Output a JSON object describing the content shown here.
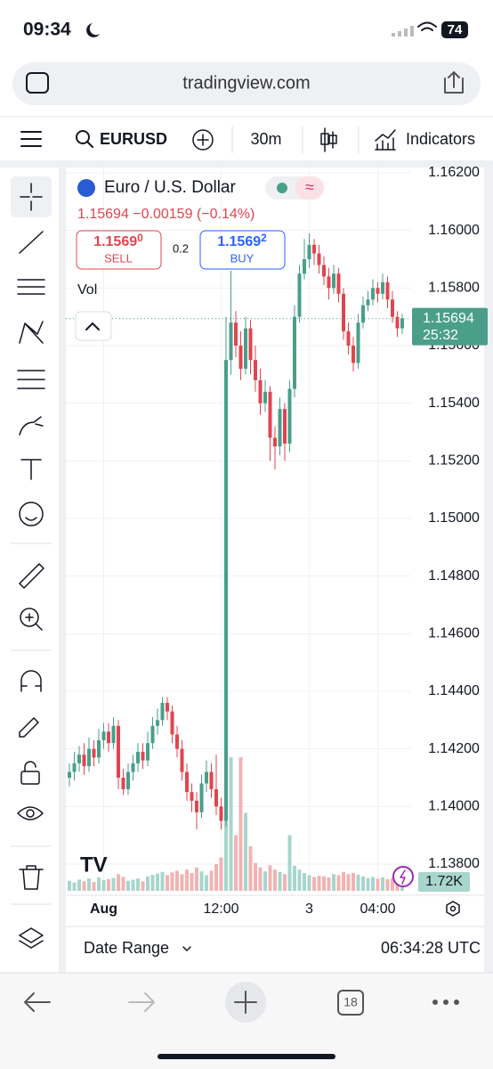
{
  "status": {
    "time": "09:34",
    "battery": "74"
  },
  "browser": {
    "url": "tradingview.com",
    "tabs": "18"
  },
  "toolbar": {
    "symbol": "EURUSD",
    "interval": "30m",
    "indicators": "Indicators"
  },
  "legend": {
    "name": "Euro / U.S. Dollar",
    "change": "−0.00159",
    "change_pct": "(−0.14%)",
    "sell_price": "1.1569",
    "sell_pip": "0",
    "sell": "SELL",
    "spread": "0.2",
    "buy_price": "1.1569",
    "buy_pip": "2",
    "buy": "BUY",
    "vol": "Vol"
  },
  "footer": {
    "date_range": "Date Range",
    "clock": "06:34:28 UTC"
  },
  "chart_data": {
    "type": "candlestick",
    "up_color": "#4a9e8a",
    "down_color": "#e0454f",
    "ylim": [
      1.138,
      1.162
    ],
    "yticks": [
      {
        "value": 1.162,
        "label": "1.16200"
      },
      {
        "value": 1.16,
        "label": "1.16000"
      },
      {
        "value": 1.158,
        "label": "1.15800"
      },
      {
        "value": 1.156,
        "label": "1.15600"
      },
      {
        "value": 1.154,
        "label": "1.15400"
      },
      {
        "value": 1.152,
        "label": "1.15200"
      },
      {
        "value": 1.15,
        "label": "1.15000"
      },
      {
        "value": 1.148,
        "label": "1.14800"
      },
      {
        "value": 1.146,
        "label": "1.14600"
      },
      {
        "value": 1.144,
        "label": "1.14400"
      },
      {
        "value": 1.142,
        "label": "1.14200"
      },
      {
        "value": 1.14,
        "label": "1.14000"
      },
      {
        "value": 1.138,
        "label": "1.13800"
      }
    ],
    "xticks": [
      {
        "value": 7,
        "label": "Aug"
      },
      {
        "value": 31,
        "label": "12:00"
      },
      {
        "value": 49,
        "label": "3"
      },
      {
        "value": 63,
        "label": "04:00"
      }
    ],
    "grid": true,
    "countdown": "25:32",
    "volume_last_label": "1.72K",
    "candles": [
      [
        1.141,
        1.1415,
        1.1407,
        1.1412
      ],
      [
        1.1412,
        1.1419,
        1.1409,
        1.1415
      ],
      [
        1.1415,
        1.1421,
        1.1412,
        1.1418
      ],
      [
        1.1418,
        1.1422,
        1.1411,
        1.1414
      ],
      [
        1.1414,
        1.1424,
        1.1412,
        1.142
      ],
      [
        1.142,
        1.1423,
        1.1414,
        1.1417
      ],
      [
        1.1417,
        1.1427,
        1.1415,
        1.1423
      ],
      [
        1.1423,
        1.1429,
        1.142,
        1.1426
      ],
      [
        1.1426,
        1.1429,
        1.1419,
        1.1422
      ],
      [
        1.1422,
        1.1431,
        1.142,
        1.1428
      ],
      [
        1.1428,
        1.143,
        1.1406,
        1.141
      ],
      [
        1.141,
        1.1413,
        1.1404,
        1.1406
      ],
      [
        1.1406,
        1.1415,
        1.1404,
        1.1412
      ],
      [
        1.1412,
        1.1418,
        1.1409,
        1.1415
      ],
      [
        1.1415,
        1.1422,
        1.1412,
        1.1419
      ],
      [
        1.1419,
        1.1422,
        1.1413,
        1.1416
      ],
      [
        1.1416,
        1.1426,
        1.1414,
        1.1422
      ],
      [
        1.1422,
        1.1431,
        1.142,
        1.1428
      ],
      [
        1.1428,
        1.1434,
        1.1425,
        1.143
      ],
      [
        1.143,
        1.1438,
        1.1428,
        1.1436
      ],
      [
        1.1436,
        1.1438,
        1.143,
        1.1433
      ],
      [
        1.1433,
        1.1435,
        1.1422,
        1.1425
      ],
      [
        1.1425,
        1.1428,
        1.1417,
        1.142
      ],
      [
        1.142,
        1.1423,
        1.1409,
        1.1412
      ],
      [
        1.1412,
        1.1415,
        1.1402,
        1.1405
      ],
      [
        1.1405,
        1.1408,
        1.1398,
        1.1402
      ],
      [
        1.1402,
        1.1405,
        1.1392,
        1.1398
      ],
      [
        1.1398,
        1.1411,
        1.1396,
        1.1408
      ],
      [
        1.1408,
        1.1416,
        1.1405,
        1.1412
      ],
      [
        1.1412,
        1.1415,
        1.1403,
        1.1406
      ],
      [
        1.1406,
        1.1418,
        1.1397,
        1.14
      ],
      [
        1.14,
        1.1403,
        1.1392,
        1.1395
      ],
      [
        1.1395,
        1.157,
        1.1393,
        1.1555
      ],
      [
        1.1555,
        1.1586,
        1.155,
        1.1568
      ],
      [
        1.1568,
        1.1572,
        1.1556,
        1.156
      ],
      [
        1.156,
        1.1565,
        1.1548,
        1.1552
      ],
      [
        1.1552,
        1.157,
        1.155,
        1.1566
      ],
      [
        1.1566,
        1.1569,
        1.155,
        1.1555
      ],
      [
        1.1555,
        1.156,
        1.1544,
        1.1548
      ],
      [
        1.1548,
        1.1552,
        1.1536,
        1.154
      ],
      [
        1.154,
        1.1548,
        1.1537,
        1.1544
      ],
      [
        1.1544,
        1.1546,
        1.152,
        1.1528
      ],
      [
        1.1528,
        1.1532,
        1.1517,
        1.1525
      ],
      [
        1.1525,
        1.1542,
        1.1522,
        1.1538
      ],
      [
        1.1538,
        1.154,
        1.152,
        1.1526
      ],
      [
        1.1526,
        1.1548,
        1.1523,
        1.1545
      ],
      [
        1.1545,
        1.1574,
        1.1542,
        1.157
      ],
      [
        1.157,
        1.1588,
        1.1568,
        1.1585
      ],
      [
        1.1585,
        1.1597,
        1.1583,
        1.159
      ],
      [
        1.159,
        1.1599,
        1.1587,
        1.1595
      ],
      [
        1.1595,
        1.1597,
        1.1588,
        1.1592
      ],
      [
        1.1592,
        1.1595,
        1.1585,
        1.1588
      ],
      [
        1.1588,
        1.1591,
        1.1581,
        1.1584
      ],
      [
        1.1584,
        1.1587,
        1.1576,
        1.158
      ],
      [
        1.158,
        1.1588,
        1.1578,
        1.1585
      ],
      [
        1.1585,
        1.1587,
        1.1575,
        1.1578
      ],
      [
        1.1578,
        1.158,
        1.1562,
        1.1565
      ],
      [
        1.1565,
        1.1568,
        1.1557,
        1.156
      ],
      [
        1.156,
        1.1563,
        1.1551,
        1.1554
      ],
      [
        1.1554,
        1.1571,
        1.1552,
        1.1568
      ],
      [
        1.1568,
        1.1577,
        1.1566,
        1.1574
      ],
      [
        1.1574,
        1.1579,
        1.1572,
        1.1576
      ],
      [
        1.1576,
        1.1583,
        1.1574,
        1.158
      ],
      [
        1.158,
        1.1582,
        1.1575,
        1.1578
      ],
      [
        1.1578,
        1.1585,
        1.1576,
        1.1582
      ],
      [
        1.1582,
        1.1584,
        1.1573,
        1.1576
      ],
      [
        1.1576,
        1.1579,
        1.1568,
        1.157
      ],
      [
        1.157,
        1.1572,
        1.1563,
        1.1566
      ],
      [
        1.1566,
        1.1571,
        1.1564,
        1.15694
      ]
    ],
    "volumes": [
      1800,
      1500,
      2000,
      1700,
      2200,
      1600,
      2400,
      1900,
      2100,
      2300,
      3000,
      2500,
      1800,
      2000,
      2200,
      1700,
      2600,
      2900,
      3100,
      3400,
      2800,
      3300,
      3600,
      3000,
      3800,
      3200,
      4200,
      3500,
      2800,
      3600,
      4800,
      6000,
      20000,
      24000,
      10000,
      24000,
      14000,
      8000,
      5000,
      4200,
      3500,
      4600,
      3800,
      3400,
      3000,
      10000,
      4500,
      3800,
      3200,
      2800,
      2500,
      2700,
      2600,
      2400,
      3000,
      2800,
      3400,
      3000,
      3200,
      2900,
      2600,
      2300,
      2500,
      2200,
      2400,
      2100,
      2300,
      1900,
      1720
    ]
  }
}
